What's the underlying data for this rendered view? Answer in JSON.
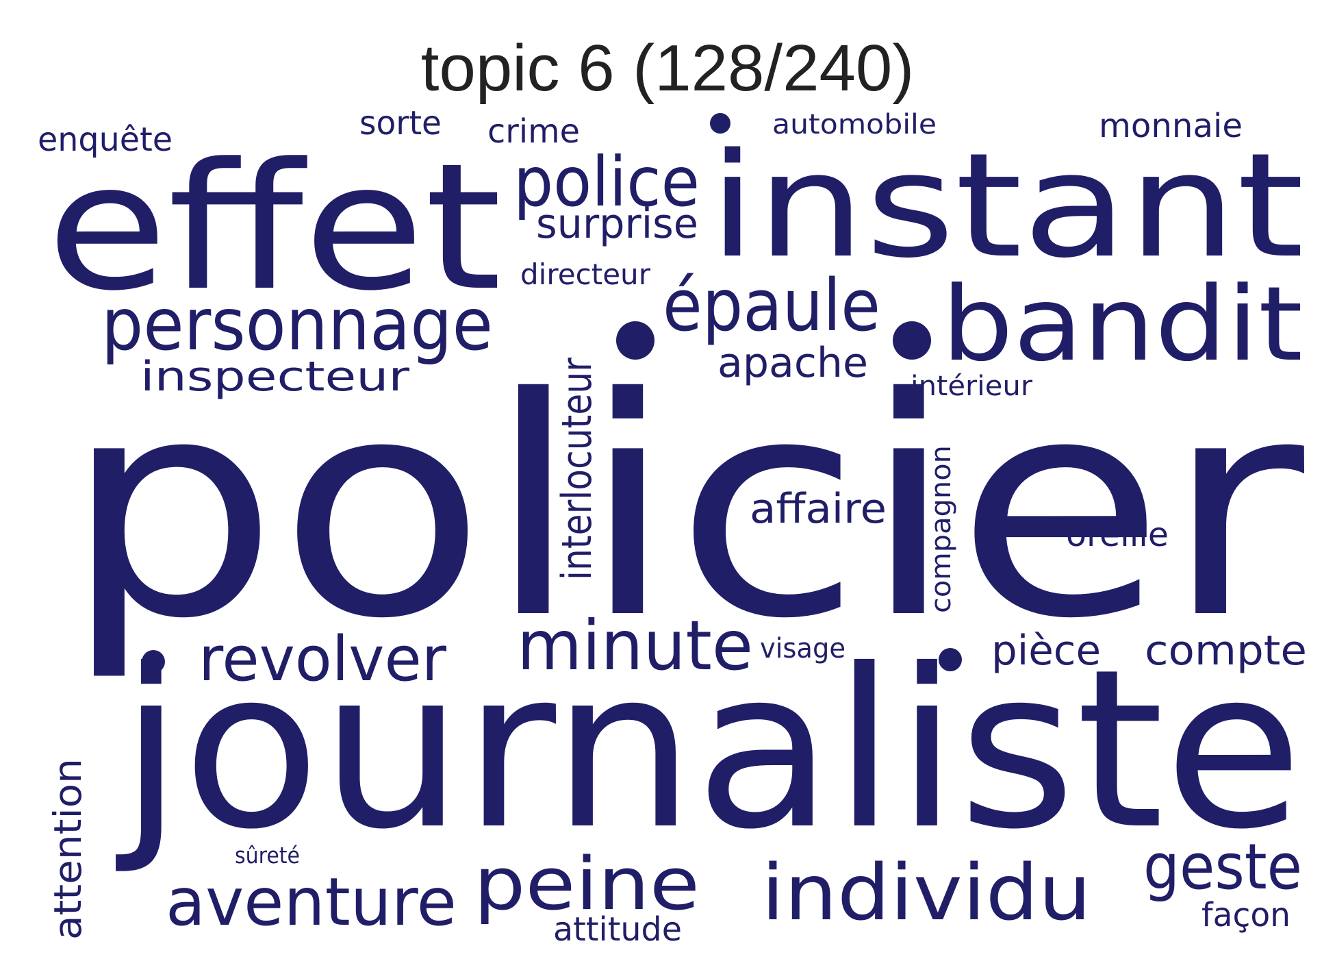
{
  "title": "topic 6 (128/240)",
  "word_color": "#211e68",
  "words": [
    {
      "text": "policier",
      "name": "word-policier"
    },
    {
      "text": "journaliste",
      "name": "word-journaliste"
    },
    {
      "text": "instant",
      "name": "word-instant"
    },
    {
      "text": "effet",
      "name": "word-effet"
    },
    {
      "text": "bandit",
      "name": "word-bandit"
    },
    {
      "text": "personnage",
      "name": "word-personnage"
    },
    {
      "text": "épaule",
      "name": "word-epaule"
    },
    {
      "text": "police",
      "name": "word-police"
    },
    {
      "text": "individu",
      "name": "word-individu"
    },
    {
      "text": "minute",
      "name": "word-minute"
    },
    {
      "text": "peine",
      "name": "word-peine"
    },
    {
      "text": "aventure",
      "name": "word-aventure"
    },
    {
      "text": "revolver",
      "name": "word-revolver"
    },
    {
      "text": "geste",
      "name": "word-geste"
    },
    {
      "text": "inspecteur",
      "name": "word-inspecteur"
    },
    {
      "text": "interlocuteur",
      "name": "word-interlocuteur"
    },
    {
      "text": "surprise",
      "name": "word-surprise"
    },
    {
      "text": "apache",
      "name": "word-apache"
    },
    {
      "text": "affaire",
      "name": "word-affaire"
    },
    {
      "text": "compte",
      "name": "word-compte"
    },
    {
      "text": "pièce",
      "name": "word-piece"
    },
    {
      "text": "attention",
      "name": "word-attention"
    },
    {
      "text": "enquête",
      "name": "word-enquete"
    },
    {
      "text": "crime",
      "name": "word-crime"
    },
    {
      "text": "sorte",
      "name": "word-sorte"
    },
    {
      "text": "monnaie",
      "name": "word-monnaie"
    },
    {
      "text": "oreille",
      "name": "word-oreille"
    },
    {
      "text": "façon",
      "name": "word-facon"
    },
    {
      "text": "attitude",
      "name": "word-attitude"
    },
    {
      "text": "directeur",
      "name": "word-directeur"
    },
    {
      "text": "automobile",
      "name": "word-automobile"
    },
    {
      "text": "compagnon",
      "name": "word-compagnon"
    },
    {
      "text": "intérieur",
      "name": "word-interieur"
    },
    {
      "text": "visage",
      "name": "word-visage"
    },
    {
      "text": "sûreté",
      "name": "word-surete"
    }
  ]
}
